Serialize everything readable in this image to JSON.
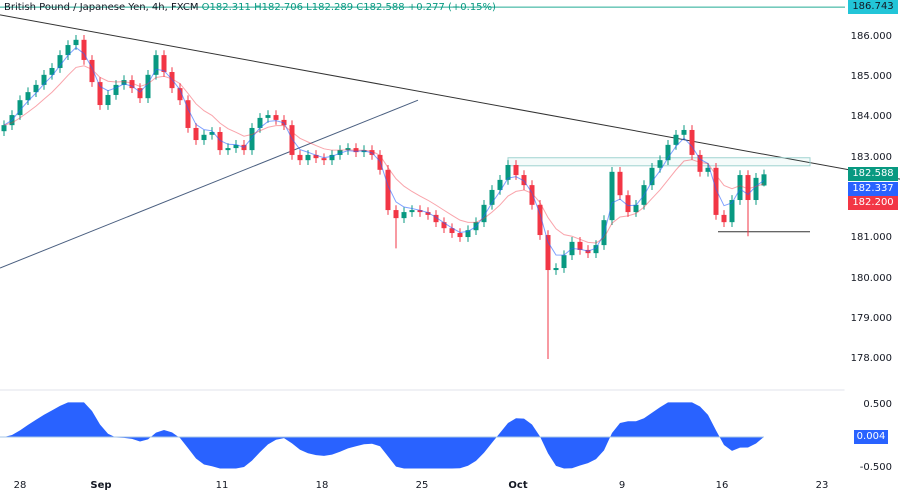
{
  "legend": {
    "symbol": "British Pound / Japanese Yen, 4h, FXCM",
    "open": "O182.311",
    "high": "H182.706",
    "low": "L182.289",
    "close": "C182.588",
    "change": "+0.277 (+0.15%)"
  },
  "price_axis": [
    "186.000",
    "185.000",
    "184.000",
    "183.000",
    "181.000",
    "180.000",
    "179.000",
    "178.000"
  ],
  "tags": {
    "top_line": "186.743",
    "last_price": "182.588",
    "ma_fast": "182.337",
    "ma_slow": "182.200",
    "oscillator": "0.004"
  },
  "osc_axis": [
    "0.500",
    "-0.500"
  ],
  "date_axis": [
    "28",
    "Sep",
    "11",
    "18",
    "25",
    "Oct",
    "9",
    "16",
    "23"
  ],
  "colors": {
    "up": "#089981",
    "down": "#f23645",
    "ma_fast": "#2962ff",
    "ma_slow": "#f23645",
    "osc": "#2962ff",
    "top_line": "#22ab94"
  },
  "chart_data": {
    "type": "candlestick",
    "timeframe": "4h",
    "ylim": [
      177.6,
      186.9
    ],
    "closes": [
      183.81,
      184.06,
      184.43,
      184.63,
      184.81,
      185.06,
      185.23,
      185.55,
      185.8,
      185.93,
      185.43,
      184.88,
      184.31,
      184.56,
      184.81,
      184.93,
      184.73,
      184.48,
      185.06,
      185.55,
      185.13,
      184.73,
      184.43,
      183.74,
      183.44,
      183.57,
      183.64,
      183.19,
      183.24,
      183.32,
      183.19,
      183.74,
      183.99,
      184.06,
      183.94,
      183.81,
      183.07,
      182.94,
      183.07,
      182.99,
      182.94,
      183.07,
      183.19,
      183.24,
      183.14,
      183.19,
      183.07,
      182.7,
      181.7,
      181.5,
      181.65,
      181.7,
      181.65,
      181.58,
      181.4,
      181.25,
      181.13,
      181.03,
      181.2,
      181.4,
      181.83,
      182.2,
      182.45,
      182.82,
      182.57,
      182.32,
      181.83,
      181.08,
      180.21,
      180.26,
      180.58,
      180.91,
      180.71,
      180.63,
      180.83,
      181.45,
      182.65,
      182.07,
      181.65,
      181.83,
      182.32,
      182.75,
      182.94,
      183.32,
      183.57,
      183.69,
      183.07,
      182.65,
      182.75,
      181.58,
      181.4,
      181.95,
      182.57,
      181.95,
      182.5,
      182.588
    ],
    "last_candle": {
      "open": 182.311,
      "high": 182.706,
      "low": 182.289,
      "close": 182.588
    },
    "notable_wicks": [
      {
        "index": 68,
        "low": 178.0
      },
      {
        "index": 93,
        "low": 181.05
      },
      {
        "index": 49,
        "low": 180.75
      }
    ],
    "drawings": {
      "descending_trendline": [
        186.55,
        182.47
      ],
      "ascending_trendline": [
        180.26,
        184.43
      ],
      "resistance_zone": [
        182.8,
        183.0
      ],
      "support_line": 181.16,
      "top_horizontal": 186.743
    },
    "oscillator_ylim": [
      -0.5,
      0.5
    ]
  }
}
